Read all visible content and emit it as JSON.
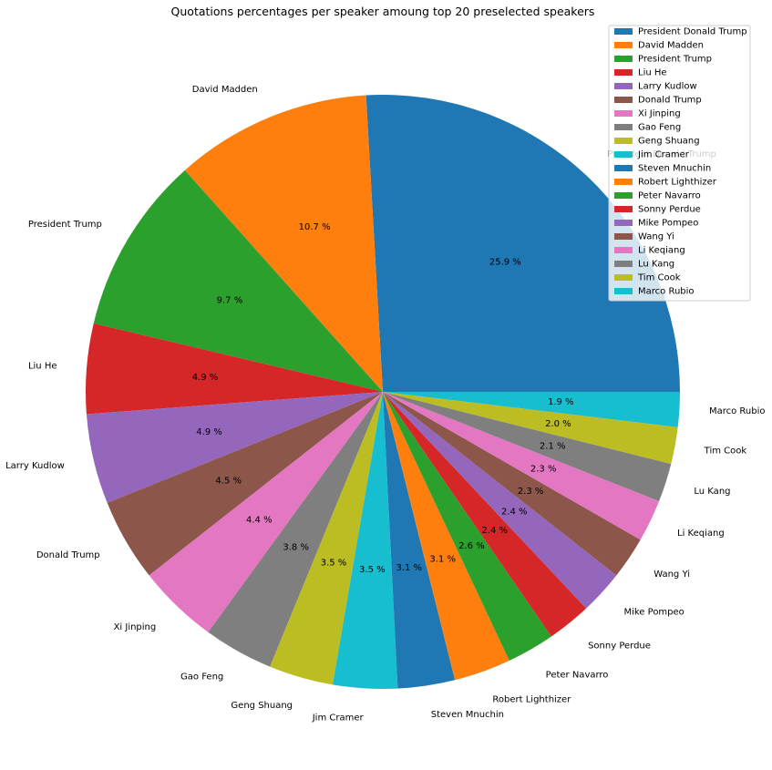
{
  "chart_data": {
    "type": "pie",
    "title": "Quotations percentages per speaker amoung top 20 preselected speakers",
    "start_angle_deg": 0,
    "direction": "counterclockwise",
    "legend_position": "top-right",
    "slices": [
      {
        "label": "President Donald Trump",
        "value": 25.9,
        "pct_label": "25.9 %",
        "color": "#1f77b4"
      },
      {
        "label": "David Madden",
        "value": 10.7,
        "pct_label": "10.7 %",
        "color": "#ff7f0e"
      },
      {
        "label": "President Trump",
        "value": 9.7,
        "pct_label": "9.7 %",
        "color": "#2ca02c"
      },
      {
        "label": "Liu He",
        "value": 4.9,
        "pct_label": "4.9 %",
        "color": "#d62728"
      },
      {
        "label": "Larry Kudlow",
        "value": 4.9,
        "pct_label": "4.9 %",
        "color": "#9467bd"
      },
      {
        "label": "Donald Trump",
        "value": 4.5,
        "pct_label": "4.5 %",
        "color": "#8c564b"
      },
      {
        "label": "Xi Jinping",
        "value": 4.4,
        "pct_label": "4.4 %",
        "color": "#e377c2"
      },
      {
        "label": "Gao Feng",
        "value": 3.8,
        "pct_label": "3.8 %",
        "color": "#7f7f7f"
      },
      {
        "label": "Geng Shuang",
        "value": 3.5,
        "pct_label": "3.5 %",
        "color": "#bcbd22"
      },
      {
        "label": "Jim Cramer",
        "value": 3.5,
        "pct_label": "3.5 %",
        "color": "#17becf"
      },
      {
        "label": "Steven Mnuchin",
        "value": 3.1,
        "pct_label": "3.1 %",
        "color": "#1f77b4"
      },
      {
        "label": "Robert Lighthizer",
        "value": 3.1,
        "pct_label": "3.1 %",
        "color": "#ff7f0e"
      },
      {
        "label": "Peter Navarro",
        "value": 2.6,
        "pct_label": "2.6 %",
        "color": "#2ca02c"
      },
      {
        "label": "Sonny Perdue",
        "value": 2.4,
        "pct_label": "2.4 %",
        "color": "#d62728"
      },
      {
        "label": "Mike Pompeo",
        "value": 2.4,
        "pct_label": "2.4 %",
        "color": "#9467bd"
      },
      {
        "label": "Wang Yi",
        "value": 2.3,
        "pct_label": "2.3 %",
        "color": "#8c564b"
      },
      {
        "label": "Li Keqiang",
        "value": 2.3,
        "pct_label": "2.3 %",
        "color": "#e377c2"
      },
      {
        "label": "Lu Kang",
        "value": 2.1,
        "pct_label": "2.1 %",
        "color": "#7f7f7f"
      },
      {
        "label": "Tim Cook",
        "value": 2.0,
        "pct_label": "2.0 %",
        "color": "#bcbd22"
      },
      {
        "label": "Marco Rubio",
        "value": 1.9,
        "pct_label": "1.9 %",
        "color": "#17becf"
      }
    ]
  }
}
